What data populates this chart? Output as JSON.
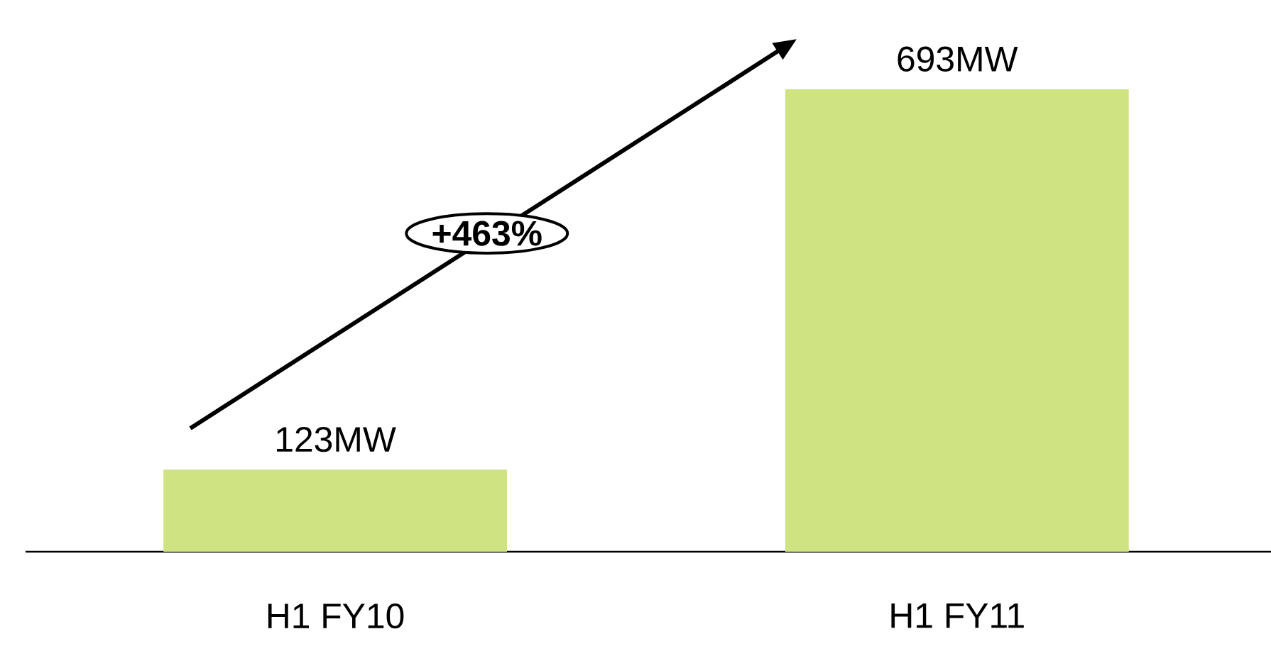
{
  "chart_data": {
    "type": "bar",
    "categories": [
      "H1 FY10",
      "H1 FY11"
    ],
    "values": [
      123,
      693
    ],
    "value_labels": [
      "123MW",
      "693MW"
    ],
    "color": "#cfe383",
    "annotations": [
      "+463%"
    ]
  }
}
